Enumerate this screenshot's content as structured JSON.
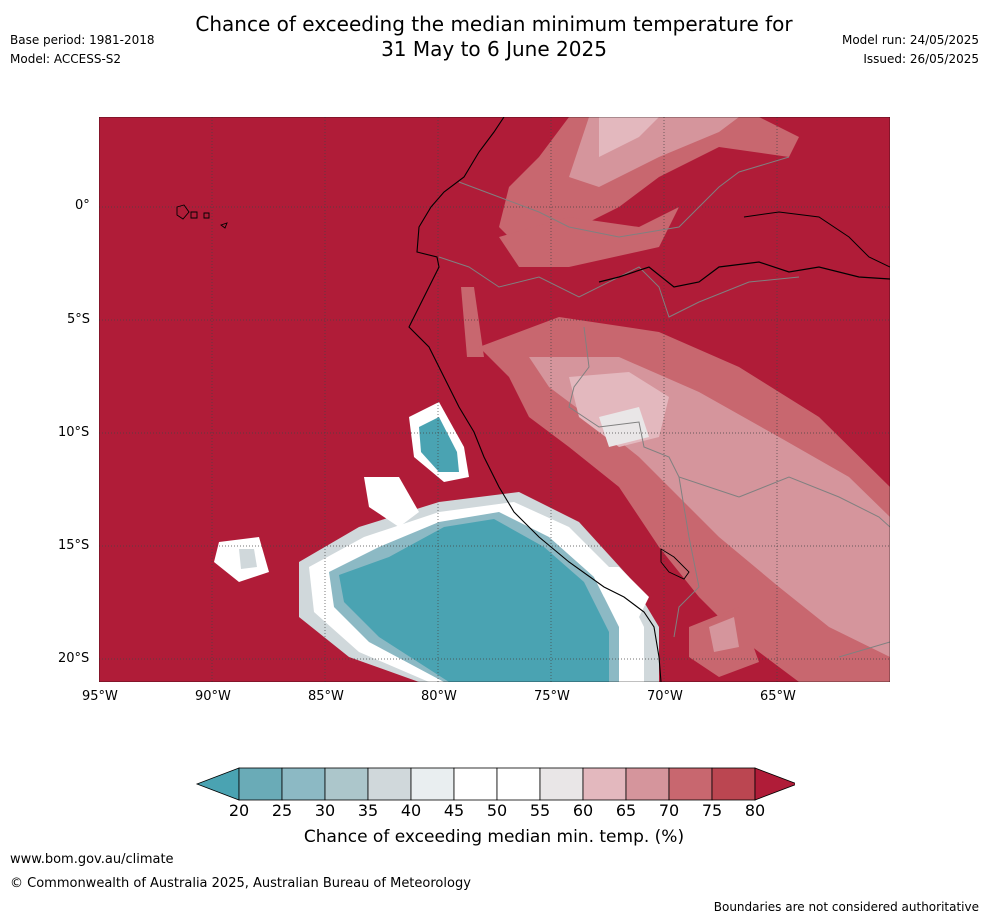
{
  "header": {
    "title_line1": "Chance of exceeding the median minimum temperature for",
    "title_line2": "31 May to 6 June 2025",
    "base_period": "Base period: 1981-2018",
    "model": "Model: ACCESS-S2",
    "model_run": "Model run: 24/05/2025",
    "issued": "Issued: 26/05/2025"
  },
  "map": {
    "lat_labels": [
      "0°",
      "5°S",
      "10°S",
      "15°S",
      "20°S"
    ],
    "lon_labels": [
      "95°W",
      "90°W",
      "85°W",
      "80°W",
      "75°W",
      "70°W",
      "65°W"
    ]
  },
  "colorbar": {
    "ticks": [
      "20",
      "25",
      "30",
      "35",
      "40",
      "45",
      "50",
      "55",
      "60",
      "65",
      "70",
      "75",
      "80"
    ],
    "colors": [
      "#4aa3b2",
      "#6aabb7",
      "#8cb9c4",
      "#acc6cb",
      "#d0d8db",
      "#e9eef0",
      "#ffffff",
      "#ffffff",
      "#e9e6e7",
      "#e3b8be",
      "#d5959c",
      "#c8676f",
      "#bb4651",
      "#b01c38"
    ],
    "label": "Chance of exceeding median min. temp. (%)"
  },
  "footer": {
    "url": "www.bom.gov.au/climate",
    "copyright": "© Commonwealth of Australia 2025, Australian Bureau of Meteorology",
    "disclaimer": "Boundaries are not considered authoritative"
  }
}
